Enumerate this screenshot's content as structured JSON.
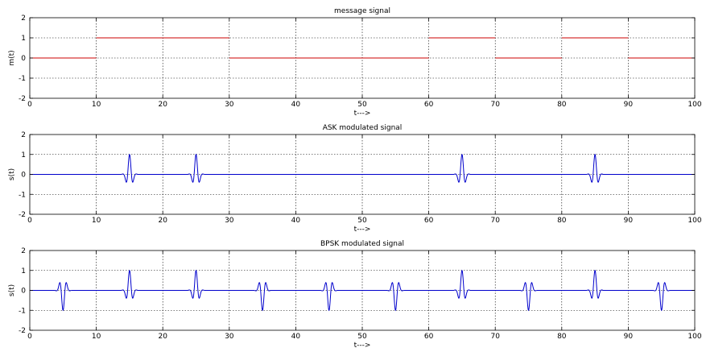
{
  "chart_data": [
    {
      "type": "line",
      "title": "message signal",
      "xlabel": "t--->",
      "ylabel": "m(t)",
      "xlim": [
        0,
        100
      ],
      "ylim": [
        -2,
        2
      ],
      "xticks": [
        0,
        10,
        20,
        30,
        40,
        50,
        60,
        70,
        80,
        90,
        100
      ],
      "yticks": [
        -2,
        -1,
        0,
        1,
        2
      ],
      "grid": true,
      "series": [
        {
          "kind": "step",
          "color": "#cc0000",
          "breakpoints": [
            0,
            10,
            20,
            30,
            40,
            50,
            60,
            70,
            80,
            90,
            100
          ],
          "levels": [
            0,
            1,
            1,
            0,
            0,
            0,
            1,
            0,
            1,
            0
          ]
        }
      ]
    },
    {
      "type": "line",
      "title": "ASK modulated signal",
      "xlabel": "t--->",
      "ylabel": "s(t)",
      "xlim": [
        0,
        100
      ],
      "ylim": [
        -2,
        2
      ],
      "xticks": [
        0,
        10,
        20,
        30,
        40,
        50,
        60,
        70,
        80,
        90,
        100
      ],
      "yticks": [
        -2,
        -1,
        0,
        1,
        2
      ],
      "grid": true,
      "series": [
        {
          "kind": "pulses",
          "color": "#0000cc",
          "pulse_centers": [
            15,
            25,
            65,
            85
          ],
          "pulse_signs": [
            1,
            1,
            1,
            1
          ],
          "pulse_peak": 1,
          "pulse_width": 1.2
        }
      ]
    },
    {
      "type": "line",
      "title": "BPSK modulated signal",
      "xlabel": "t--->",
      "ylabel": "s(t)",
      "xlim": [
        0,
        100
      ],
      "ylim": [
        -2,
        2
      ],
      "xticks": [
        0,
        10,
        20,
        30,
        40,
        50,
        60,
        70,
        80,
        90,
        100
      ],
      "yticks": [
        -2,
        -1,
        0,
        1,
        2
      ],
      "grid": true,
      "series": [
        {
          "kind": "pulses",
          "color": "#0000cc",
          "pulse_centers": [
            5,
            15,
            25,
            35,
            45,
            55,
            65,
            75,
            85,
            95
          ],
          "pulse_signs": [
            -1,
            1,
            1,
            -1,
            -1,
            -1,
            1,
            -1,
            1,
            -1
          ],
          "pulse_peak": 1,
          "pulse_width": 1.2
        }
      ]
    }
  ]
}
